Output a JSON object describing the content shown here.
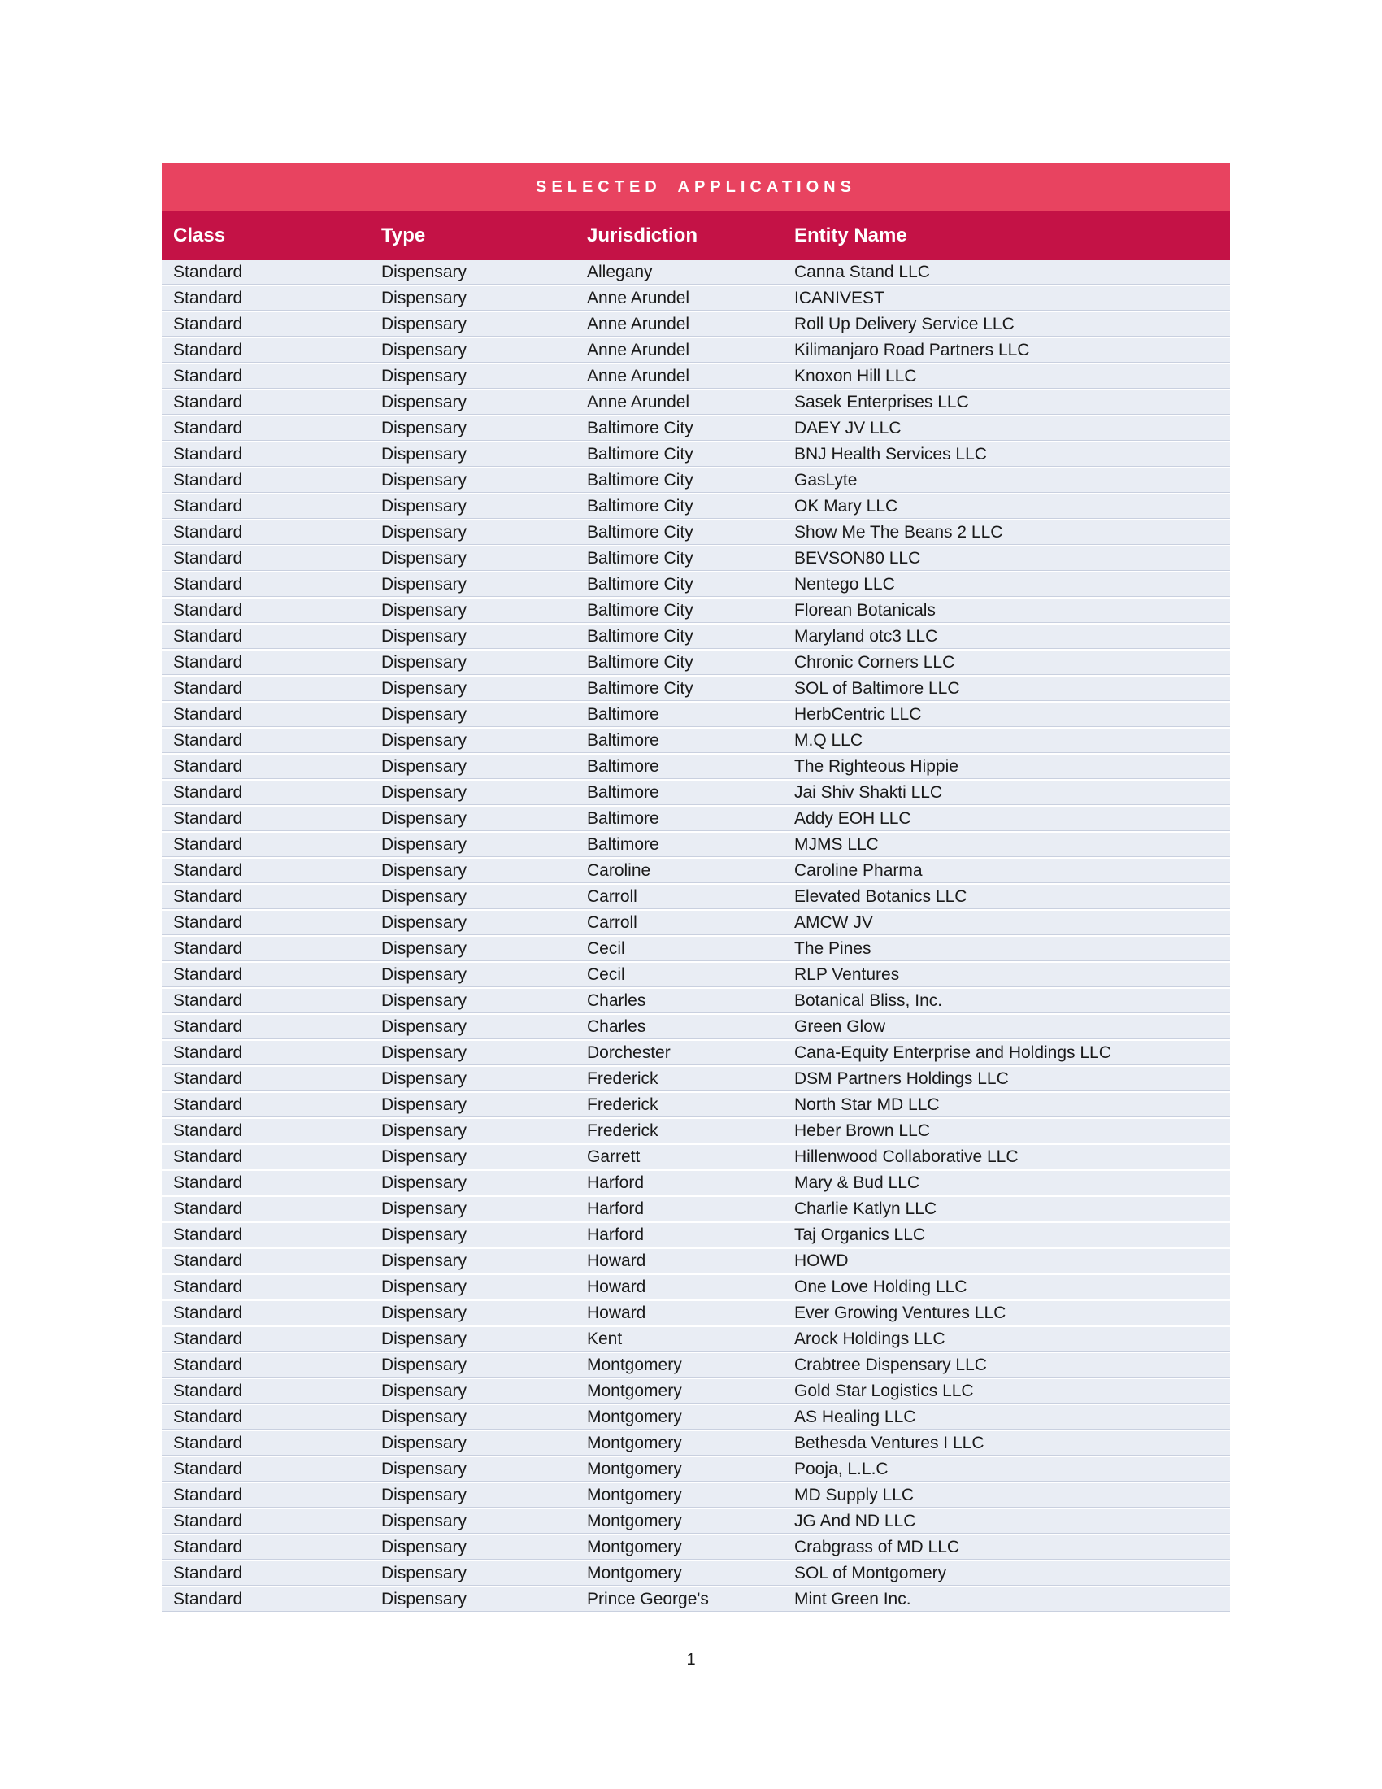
{
  "page": {
    "number": "1"
  },
  "colors": {
    "title_banner_bg": "#e84360",
    "header_row_bg": "#c41246",
    "row_bg": "#e9edf4",
    "row_separator": "#c9d0df",
    "header_text": "#ffffff",
    "body_text": "#1a1a1a"
  },
  "table": {
    "title": "SELECTED APPLICATIONS",
    "columns": [
      "Class",
      "Type",
      "Jurisdiction",
      "Entity Name"
    ],
    "rows": [
      [
        "Standard",
        "Dispensary",
        "Allegany",
        "Canna Stand LLC"
      ],
      [
        "Standard",
        "Dispensary",
        "Anne Arundel",
        "ICANIVEST"
      ],
      [
        "Standard",
        "Dispensary",
        "Anne Arundel",
        "Roll Up Delivery Service LLC"
      ],
      [
        "Standard",
        "Dispensary",
        "Anne Arundel",
        "Kilimanjaro Road Partners LLC"
      ],
      [
        "Standard",
        "Dispensary",
        "Anne Arundel",
        "Knoxon Hill LLC"
      ],
      [
        "Standard",
        "Dispensary",
        "Anne Arundel",
        "Sasek Enterprises LLC"
      ],
      [
        "Standard",
        "Dispensary",
        "Baltimore City",
        "DAEY JV LLC"
      ],
      [
        "Standard",
        "Dispensary",
        "Baltimore City",
        "BNJ Health Services LLC"
      ],
      [
        "Standard",
        "Dispensary",
        "Baltimore City",
        "GasLyte"
      ],
      [
        "Standard",
        "Dispensary",
        "Baltimore City",
        "OK Mary LLC"
      ],
      [
        "Standard",
        "Dispensary",
        "Baltimore City",
        "Show Me The Beans 2 LLC"
      ],
      [
        "Standard",
        "Dispensary",
        "Baltimore City",
        "BEVSON80 LLC"
      ],
      [
        "Standard",
        "Dispensary",
        "Baltimore City",
        "Nentego LLC"
      ],
      [
        "Standard",
        "Dispensary",
        "Baltimore City",
        "Florean Botanicals"
      ],
      [
        "Standard",
        "Dispensary",
        "Baltimore City",
        "Maryland otc3 LLC"
      ],
      [
        "Standard",
        "Dispensary",
        "Baltimore City",
        "Chronic Corners LLC"
      ],
      [
        "Standard",
        "Dispensary",
        "Baltimore City",
        "SOL of Baltimore LLC"
      ],
      [
        "Standard",
        "Dispensary",
        "Baltimore",
        "HerbCentric LLC"
      ],
      [
        "Standard",
        "Dispensary",
        "Baltimore",
        "M.Q LLC"
      ],
      [
        "Standard",
        "Dispensary",
        "Baltimore",
        "The Righteous Hippie"
      ],
      [
        "Standard",
        "Dispensary",
        "Baltimore",
        "Jai Shiv Shakti LLC"
      ],
      [
        "Standard",
        "Dispensary",
        "Baltimore",
        "Addy EOH LLC"
      ],
      [
        "Standard",
        "Dispensary",
        "Baltimore",
        "MJMS LLC"
      ],
      [
        "Standard",
        "Dispensary",
        "Caroline",
        "Caroline Pharma"
      ],
      [
        "Standard",
        "Dispensary",
        "Carroll",
        "Elevated Botanics LLC"
      ],
      [
        "Standard",
        "Dispensary",
        "Carroll",
        "AMCW JV"
      ],
      [
        "Standard",
        "Dispensary",
        "Cecil",
        "The Pines"
      ],
      [
        "Standard",
        "Dispensary",
        "Cecil",
        "RLP Ventures"
      ],
      [
        "Standard",
        "Dispensary",
        "Charles",
        "Botanical Bliss, Inc."
      ],
      [
        "Standard",
        "Dispensary",
        "Charles",
        "Green Glow"
      ],
      [
        "Standard",
        "Dispensary",
        "Dorchester",
        "Cana-Equity Enterprise and Holdings LLC"
      ],
      [
        "Standard",
        "Dispensary",
        "Frederick",
        "DSM Partners Holdings LLC"
      ],
      [
        "Standard",
        "Dispensary",
        "Frederick",
        "North Star MD LLC"
      ],
      [
        "Standard",
        "Dispensary",
        "Frederick",
        "Heber Brown LLC"
      ],
      [
        "Standard",
        "Dispensary",
        "Garrett",
        "Hillenwood Collaborative LLC"
      ],
      [
        "Standard",
        "Dispensary",
        "Harford",
        "Mary & Bud LLC"
      ],
      [
        "Standard",
        "Dispensary",
        "Harford",
        "Charlie Katlyn LLC"
      ],
      [
        "Standard",
        "Dispensary",
        "Harford",
        "Taj Organics LLC"
      ],
      [
        "Standard",
        "Dispensary",
        "Howard",
        "HOWD"
      ],
      [
        "Standard",
        "Dispensary",
        "Howard",
        "One Love Holding LLC"
      ],
      [
        "Standard",
        "Dispensary",
        "Howard",
        "Ever Growing Ventures LLC"
      ],
      [
        "Standard",
        "Dispensary",
        "Kent",
        "Arock Holdings LLC"
      ],
      [
        "Standard",
        "Dispensary",
        "Montgomery",
        "Crabtree Dispensary LLC"
      ],
      [
        "Standard",
        "Dispensary",
        "Montgomery",
        "Gold Star Logistics LLC"
      ],
      [
        "Standard",
        "Dispensary",
        "Montgomery",
        "AS Healing LLC"
      ],
      [
        "Standard",
        "Dispensary",
        "Montgomery",
        "Bethesda Ventures I LLC"
      ],
      [
        "Standard",
        "Dispensary",
        "Montgomery",
        "Pooja, L.L.C"
      ],
      [
        "Standard",
        "Dispensary",
        "Montgomery",
        "MD Supply LLC"
      ],
      [
        "Standard",
        "Dispensary",
        "Montgomery",
        "JG And ND LLC"
      ],
      [
        "Standard",
        "Dispensary",
        "Montgomery",
        "Crabgrass of MD LLC"
      ],
      [
        "Standard",
        "Dispensary",
        "Montgomery",
        "SOL of Montgomery"
      ],
      [
        "Standard",
        "Dispensary",
        "Prince George's",
        "Mint Green Inc."
      ]
    ]
  }
}
